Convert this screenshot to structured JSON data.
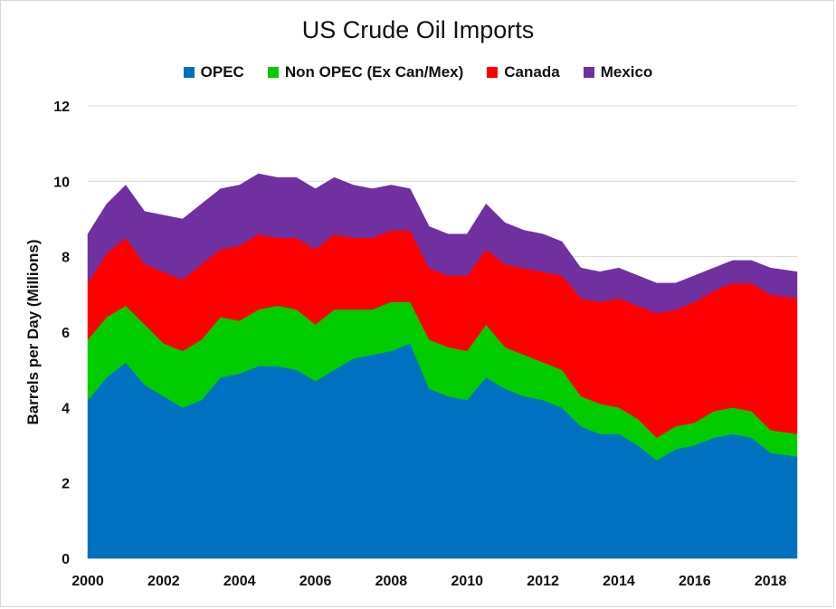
{
  "chart_data": {
    "type": "area",
    "stacked": true,
    "title": "US Crude Oil Imports",
    "ylabel": "Barrels per Day (Millions)",
    "xlabel": "",
    "xlim": [
      2000,
      2018.7
    ],
    "ylim": [
      0,
      12
    ],
    "yticks": [
      0,
      2,
      4,
      6,
      8,
      10,
      12
    ],
    "xticks": [
      2000,
      2002,
      2004,
      2006,
      2008,
      2010,
      2012,
      2014,
      2016,
      2018
    ],
    "legend_position": "top",
    "grid": "horizontal",
    "x": [
      2000.0,
      2000.5,
      2001.0,
      2001.5,
      2002.0,
      2002.5,
      2003.0,
      2003.5,
      2004.0,
      2004.5,
      2005.0,
      2005.5,
      2006.0,
      2006.5,
      2007.0,
      2007.5,
      2008.0,
      2008.5,
      2009.0,
      2009.5,
      2010.0,
      2010.5,
      2011.0,
      2011.5,
      2012.0,
      2012.5,
      2013.0,
      2013.5,
      2014.0,
      2014.5,
      2015.0,
      2015.5,
      2016.0,
      2016.5,
      2017.0,
      2017.5,
      2018.0,
      2018.7
    ],
    "series": [
      {
        "name": "OPEC",
        "color": "#0070C0",
        "values": [
          4.2,
          4.8,
          5.2,
          4.6,
          4.3,
          4.0,
          4.2,
          4.8,
          4.9,
          5.1,
          5.1,
          5.0,
          4.7,
          5.0,
          5.3,
          5.4,
          5.5,
          5.7,
          4.5,
          4.3,
          4.2,
          4.8,
          4.5,
          4.3,
          4.2,
          4.0,
          3.5,
          3.3,
          3.3,
          3.0,
          2.6,
          2.9,
          3.0,
          3.2,
          3.3,
          3.2,
          2.8,
          2.7
        ]
      },
      {
        "name": "Non OPEC (Ex Can/Mex)",
        "color": "#00CC00",
        "values": [
          1.6,
          1.6,
          1.5,
          1.6,
          1.4,
          1.5,
          1.6,
          1.6,
          1.4,
          1.5,
          1.6,
          1.6,
          1.5,
          1.6,
          1.3,
          1.2,
          1.3,
          1.1,
          1.3,
          1.3,
          1.3,
          1.4,
          1.1,
          1.1,
          1.0,
          1.0,
          0.8,
          0.8,
          0.7,
          0.7,
          0.6,
          0.6,
          0.6,
          0.7,
          0.7,
          0.7,
          0.6,
          0.6
        ]
      },
      {
        "name": "Canada",
        "color": "#FF0000",
        "values": [
          1.5,
          1.7,
          1.8,
          1.6,
          1.9,
          1.9,
          2.0,
          1.8,
          2.0,
          2.0,
          1.8,
          1.9,
          2.0,
          2.0,
          1.9,
          1.9,
          1.9,
          1.9,
          1.9,
          1.9,
          2.0,
          2.0,
          2.2,
          2.3,
          2.4,
          2.5,
          2.6,
          2.7,
          2.9,
          3.0,
          3.3,
          3.1,
          3.2,
          3.2,
          3.3,
          3.4,
          3.6,
          3.6
        ]
      },
      {
        "name": "Mexico",
        "color": "#7030A0",
        "values": [
          1.3,
          1.3,
          1.4,
          1.4,
          1.5,
          1.6,
          1.6,
          1.6,
          1.6,
          1.6,
          1.6,
          1.6,
          1.6,
          1.5,
          1.4,
          1.3,
          1.2,
          1.1,
          1.1,
          1.1,
          1.1,
          1.2,
          1.1,
          1.0,
          1.0,
          0.9,
          0.8,
          0.8,
          0.8,
          0.8,
          0.8,
          0.7,
          0.7,
          0.6,
          0.6,
          0.6,
          0.7,
          0.7
        ]
      }
    ]
  }
}
